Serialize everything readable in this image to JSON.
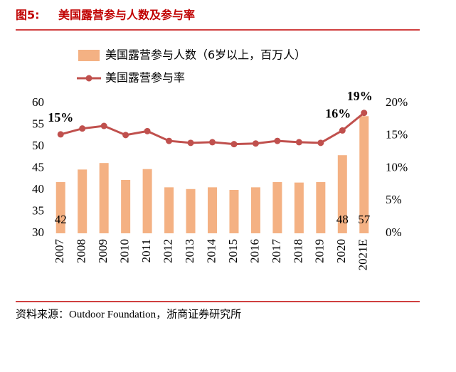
{
  "chart_data": {
    "type": "combo",
    "figure_label": "图5:",
    "title": "美国露营参与人数及参与率",
    "source": "资料来源：Outdoor Foundation，浙商证券研究所",
    "categories": [
      "2007",
      "2008",
      "2009",
      "2010",
      "2011",
      "2012",
      "2013",
      "2014",
      "2015",
      "2016",
      "2017",
      "2018",
      "2019",
      "2020",
      "2021E"
    ],
    "series": [
      {
        "name": "美国露营参与人数（6岁以上，百万人）",
        "type": "bar",
        "color": "#f4b183",
        "axis": "y",
        "values": [
          41.8,
          44.7,
          46.2,
          42.3,
          44.8,
          40.6,
          40.2,
          40.6,
          40.0,
          40.6,
          41.8,
          41.7,
          41.8,
          48.0,
          57.0
        ],
        "value_labels": [
          "42",
          null,
          null,
          null,
          null,
          null,
          null,
          null,
          null,
          null,
          null,
          null,
          null,
          "48",
          "57"
        ]
      },
      {
        "name": "美国露营参与率",
        "type": "line",
        "color": "#c0504d",
        "axis": "y2",
        "values": [
          15.2,
          16.1,
          16.5,
          15.1,
          15.7,
          14.2,
          13.9,
          14.0,
          13.7,
          13.8,
          14.2,
          14.0,
          13.9,
          15.8,
          18.5
        ],
        "value_labels": [
          "15%",
          null,
          null,
          null,
          null,
          null,
          null,
          null,
          null,
          null,
          null,
          null,
          null,
          "16%",
          "19%"
        ]
      }
    ],
    "ylim": [
      30,
      60
    ],
    "yticks": [
      30,
      35,
      40,
      45,
      50,
      55,
      60
    ],
    "y2lim": [
      0,
      20
    ],
    "y2ticks": [
      {
        "value": 0,
        "label": "0%"
      },
      {
        "value": 5,
        "label": "5%"
      },
      {
        "value": 10,
        "label": "10%"
      },
      {
        "value": 15,
        "label": "15%"
      },
      {
        "value": 20,
        "label": "20%"
      }
    ]
  }
}
